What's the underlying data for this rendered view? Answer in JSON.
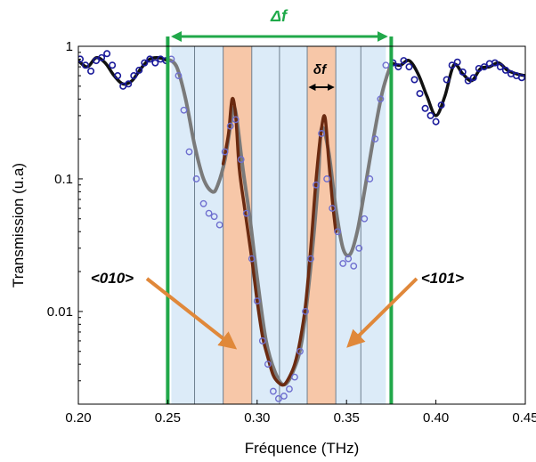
{
  "chart_data": {
    "type": "line",
    "title": "",
    "xlabel": "Fréquence (THz)",
    "ylabel": "Transmission (u.a)",
    "xlim": [
      0.2,
      0.45
    ],
    "ylim": [
      0.002,
      1
    ],
    "yscale": "log",
    "grid": false,
    "x_ticks": [
      0.2,
      0.25,
      0.3,
      0.35,
      0.4,
      0.45
    ],
    "x_tick_labels": [
      "0.20",
      "0.25",
      "0.30",
      "0.35",
      "0.40",
      "0.45"
    ],
    "y_ticks": [
      0.01,
      0.1,
      1
    ],
    "y_tick_labels": [
      "0.01",
      "0.1",
      "1"
    ],
    "colors": {
      "outer_curve": "#111111",
      "outer_points": "#1a1a9a",
      "inner_curve": "#7a7a7a",
      "inner_points": "#6f6fcf",
      "resonance_curve": "#6b2a10",
      "stopband_line": "#21a84a",
      "orange_band": "#f7c7a8",
      "blue_band": "#dcebf8",
      "arrow": "#e0883a"
    },
    "stopband": [
      0.25,
      0.375
    ],
    "orange_bands": [
      [
        0.281,
        0.297
      ],
      [
        0.328,
        0.344
      ]
    ],
    "blue_bands": [
      [
        0.252,
        0.265
      ],
      [
        0.265,
        0.281
      ],
      [
        0.297,
        0.3125
      ],
      [
        0.3125,
        0.328
      ],
      [
        0.344,
        0.358
      ],
      [
        0.358,
        0.372
      ]
    ],
    "band_lines": [
      0.265,
      0.281,
      0.297,
      0.3125,
      0.328,
      0.344,
      0.358
    ],
    "series": [
      {
        "role": "outer_curve_left",
        "x": [
          0.2,
          0.205,
          0.21,
          0.215,
          0.22,
          0.225,
          0.23,
          0.235,
          0.24,
          0.245,
          0.25
        ],
        "y": [
          0.78,
          0.7,
          0.82,
          0.75,
          0.6,
          0.52,
          0.55,
          0.68,
          0.8,
          0.82,
          0.78
        ]
      },
      {
        "role": "outer_curve_right",
        "x": [
          0.375,
          0.38,
          0.385,
          0.39,
          0.395,
          0.4,
          0.405,
          0.41,
          0.415,
          0.42,
          0.425,
          0.43,
          0.435,
          0.44,
          0.445,
          0.45
        ],
        "y": [
          0.75,
          0.72,
          0.78,
          0.62,
          0.42,
          0.3,
          0.42,
          0.72,
          0.62,
          0.55,
          0.68,
          0.7,
          0.75,
          0.66,
          0.62,
          0.6
        ]
      },
      {
        "role": "outer_points",
        "x": [
          0.201,
          0.204,
          0.207,
          0.21,
          0.213,
          0.216,
          0.219,
          0.222,
          0.225,
          0.228,
          0.231,
          0.234,
          0.237,
          0.24,
          0.243,
          0.246,
          0.249,
          0.376,
          0.379,
          0.382,
          0.385,
          0.388,
          0.391,
          0.394,
          0.397,
          0.4,
          0.403,
          0.406,
          0.409,
          0.412,
          0.415,
          0.418,
          0.421,
          0.424,
          0.427,
          0.43,
          0.433,
          0.436,
          0.439,
          0.442,
          0.445,
          0.448
        ],
        "y": [
          0.8,
          0.72,
          0.65,
          0.78,
          0.82,
          0.88,
          0.72,
          0.6,
          0.5,
          0.52,
          0.6,
          0.66,
          0.75,
          0.8,
          0.75,
          0.8,
          0.78,
          0.75,
          0.7,
          0.78,
          0.7,
          0.56,
          0.44,
          0.34,
          0.3,
          0.27,
          0.36,
          0.56,
          0.72,
          0.76,
          0.64,
          0.55,
          0.58,
          0.68,
          0.7,
          0.74,
          0.75,
          0.7,
          0.66,
          0.62,
          0.6,
          0.58
        ]
      },
      {
        "role": "inner_curve",
        "x": [
          0.25,
          0.255,
          0.26,
          0.265,
          0.27,
          0.275,
          0.278,
          0.282,
          0.286,
          0.288,
          0.292,
          0.296,
          0.3,
          0.305,
          0.31,
          0.315,
          0.32,
          0.325,
          0.33,
          0.334,
          0.336,
          0.34,
          0.344,
          0.348,
          0.352,
          0.356,
          0.36,
          0.365,
          0.37,
          0.375
        ],
        "y": [
          0.8,
          0.7,
          0.4,
          0.18,
          0.1,
          0.08,
          0.09,
          0.14,
          0.3,
          0.32,
          0.12,
          0.05,
          0.018,
          0.006,
          0.0035,
          0.0028,
          0.0035,
          0.006,
          0.022,
          0.09,
          0.24,
          0.16,
          0.06,
          0.03,
          0.027,
          0.04,
          0.08,
          0.2,
          0.45,
          0.75
        ]
      },
      {
        "role": "resonance_curve",
        "x": [
          0.281,
          0.284,
          0.286,
          0.288,
          0.29,
          0.293,
          0.297,
          0.3,
          0.303,
          0.306,
          0.309,
          0.312,
          0.315,
          0.318,
          0.321,
          0.324,
          0.327,
          0.33,
          0.333,
          0.336,
          0.338,
          0.34,
          0.342,
          0.344
        ],
        "y": [
          0.13,
          0.22,
          0.4,
          0.3,
          0.12,
          0.06,
          0.025,
          0.012,
          0.0065,
          0.0045,
          0.0033,
          0.0029,
          0.0028,
          0.0032,
          0.004,
          0.006,
          0.011,
          0.03,
          0.1,
          0.24,
          0.29,
          0.14,
          0.07,
          0.04
        ]
      },
      {
        "role": "inner_points",
        "x": [
          0.252,
          0.256,
          0.259,
          0.262,
          0.266,
          0.27,
          0.273,
          0.276,
          0.279,
          0.282,
          0.285,
          0.288,
          0.291,
          0.294,
          0.297,
          0.3,
          0.303,
          0.306,
          0.309,
          0.312,
          0.315,
          0.318,
          0.321,
          0.324,
          0.327,
          0.33,
          0.333,
          0.336,
          0.339,
          0.342,
          0.345,
          0.348,
          0.351,
          0.354,
          0.357,
          0.36,
          0.363,
          0.366,
          0.369,
          0.372
        ],
        "y": [
          0.8,
          0.6,
          0.33,
          0.16,
          0.1,
          0.065,
          0.055,
          0.052,
          0.045,
          0.16,
          0.25,
          0.28,
          0.14,
          0.055,
          0.025,
          0.012,
          0.006,
          0.004,
          0.0025,
          0.0022,
          0.0023,
          0.0026,
          0.0032,
          0.005,
          0.01,
          0.025,
          0.09,
          0.22,
          0.1,
          0.06,
          0.04,
          0.023,
          0.025,
          0.022,
          0.03,
          0.05,
          0.1,
          0.2,
          0.4,
          0.72
        ]
      }
    ],
    "annotations": {
      "stopband_label": "Δf",
      "cell_label": "δf",
      "left_label": "<010>",
      "right_label": "<101>"
    }
  }
}
